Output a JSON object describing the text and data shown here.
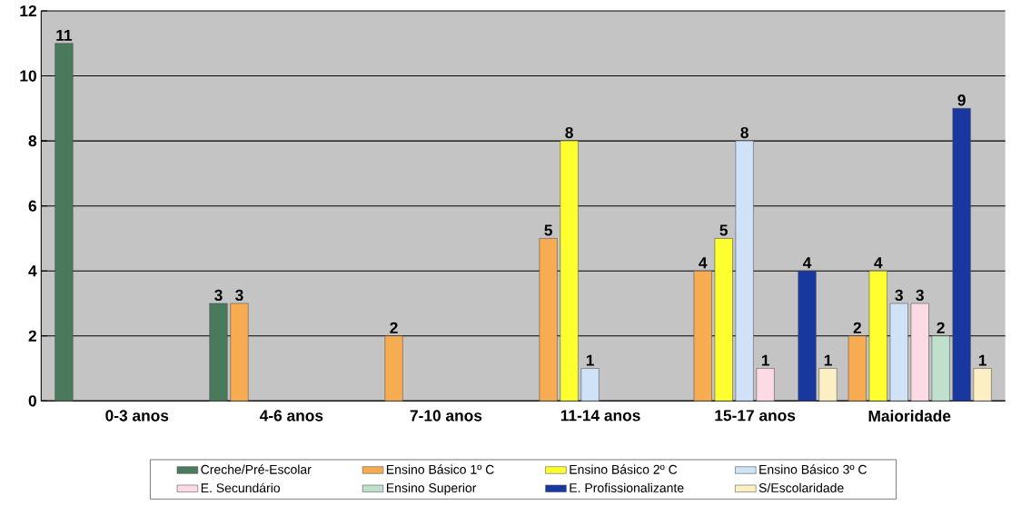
{
  "chart_data": {
    "type": "bar",
    "categories": [
      "0-3 anos",
      "4-6 anos",
      "7-10 anos",
      "11-14 anos",
      "15-17 anos",
      "Maioridade"
    ],
    "series": [
      {
        "name": "Creche/Pré-Escolar",
        "color": "#4a7a5c",
        "values": [
          11,
          3,
          null,
          null,
          null,
          null
        ]
      },
      {
        "name": "Ensino Básico 1º C",
        "color": "#f7ac52",
        "values": [
          null,
          3,
          2,
          5,
          4,
          2
        ]
      },
      {
        "name": "Ensino Básico 2º C",
        "color": "#ffff30",
        "values": [
          null,
          null,
          null,
          8,
          5,
          4
        ]
      },
      {
        "name": "Ensino Básico 3º C",
        "color": "#cfe2f7",
        "values": [
          null,
          null,
          null,
          1,
          8,
          3
        ]
      },
      {
        "name": "E. Secundário",
        "color": "#fcdbe4",
        "values": [
          null,
          null,
          null,
          null,
          1,
          3
        ]
      },
      {
        "name": "Ensino Superior",
        "color": "#bfe0cc",
        "values": [
          null,
          null,
          null,
          null,
          null,
          2
        ]
      },
      {
        "name": "E. Profissionalizante",
        "color": "#1838a0",
        "values": [
          null,
          null,
          null,
          null,
          4,
          9
        ]
      },
      {
        "name": "S/Escolaridade",
        "color": "#fcefc4",
        "values": [
          null,
          null,
          null,
          null,
          1,
          1
        ]
      }
    ],
    "ylim": [
      0,
      12
    ],
    "yticks": [
      0,
      2,
      4,
      6,
      8,
      10,
      12
    ],
    "grid": "y",
    "legend": "bottom",
    "data_labels": true
  }
}
